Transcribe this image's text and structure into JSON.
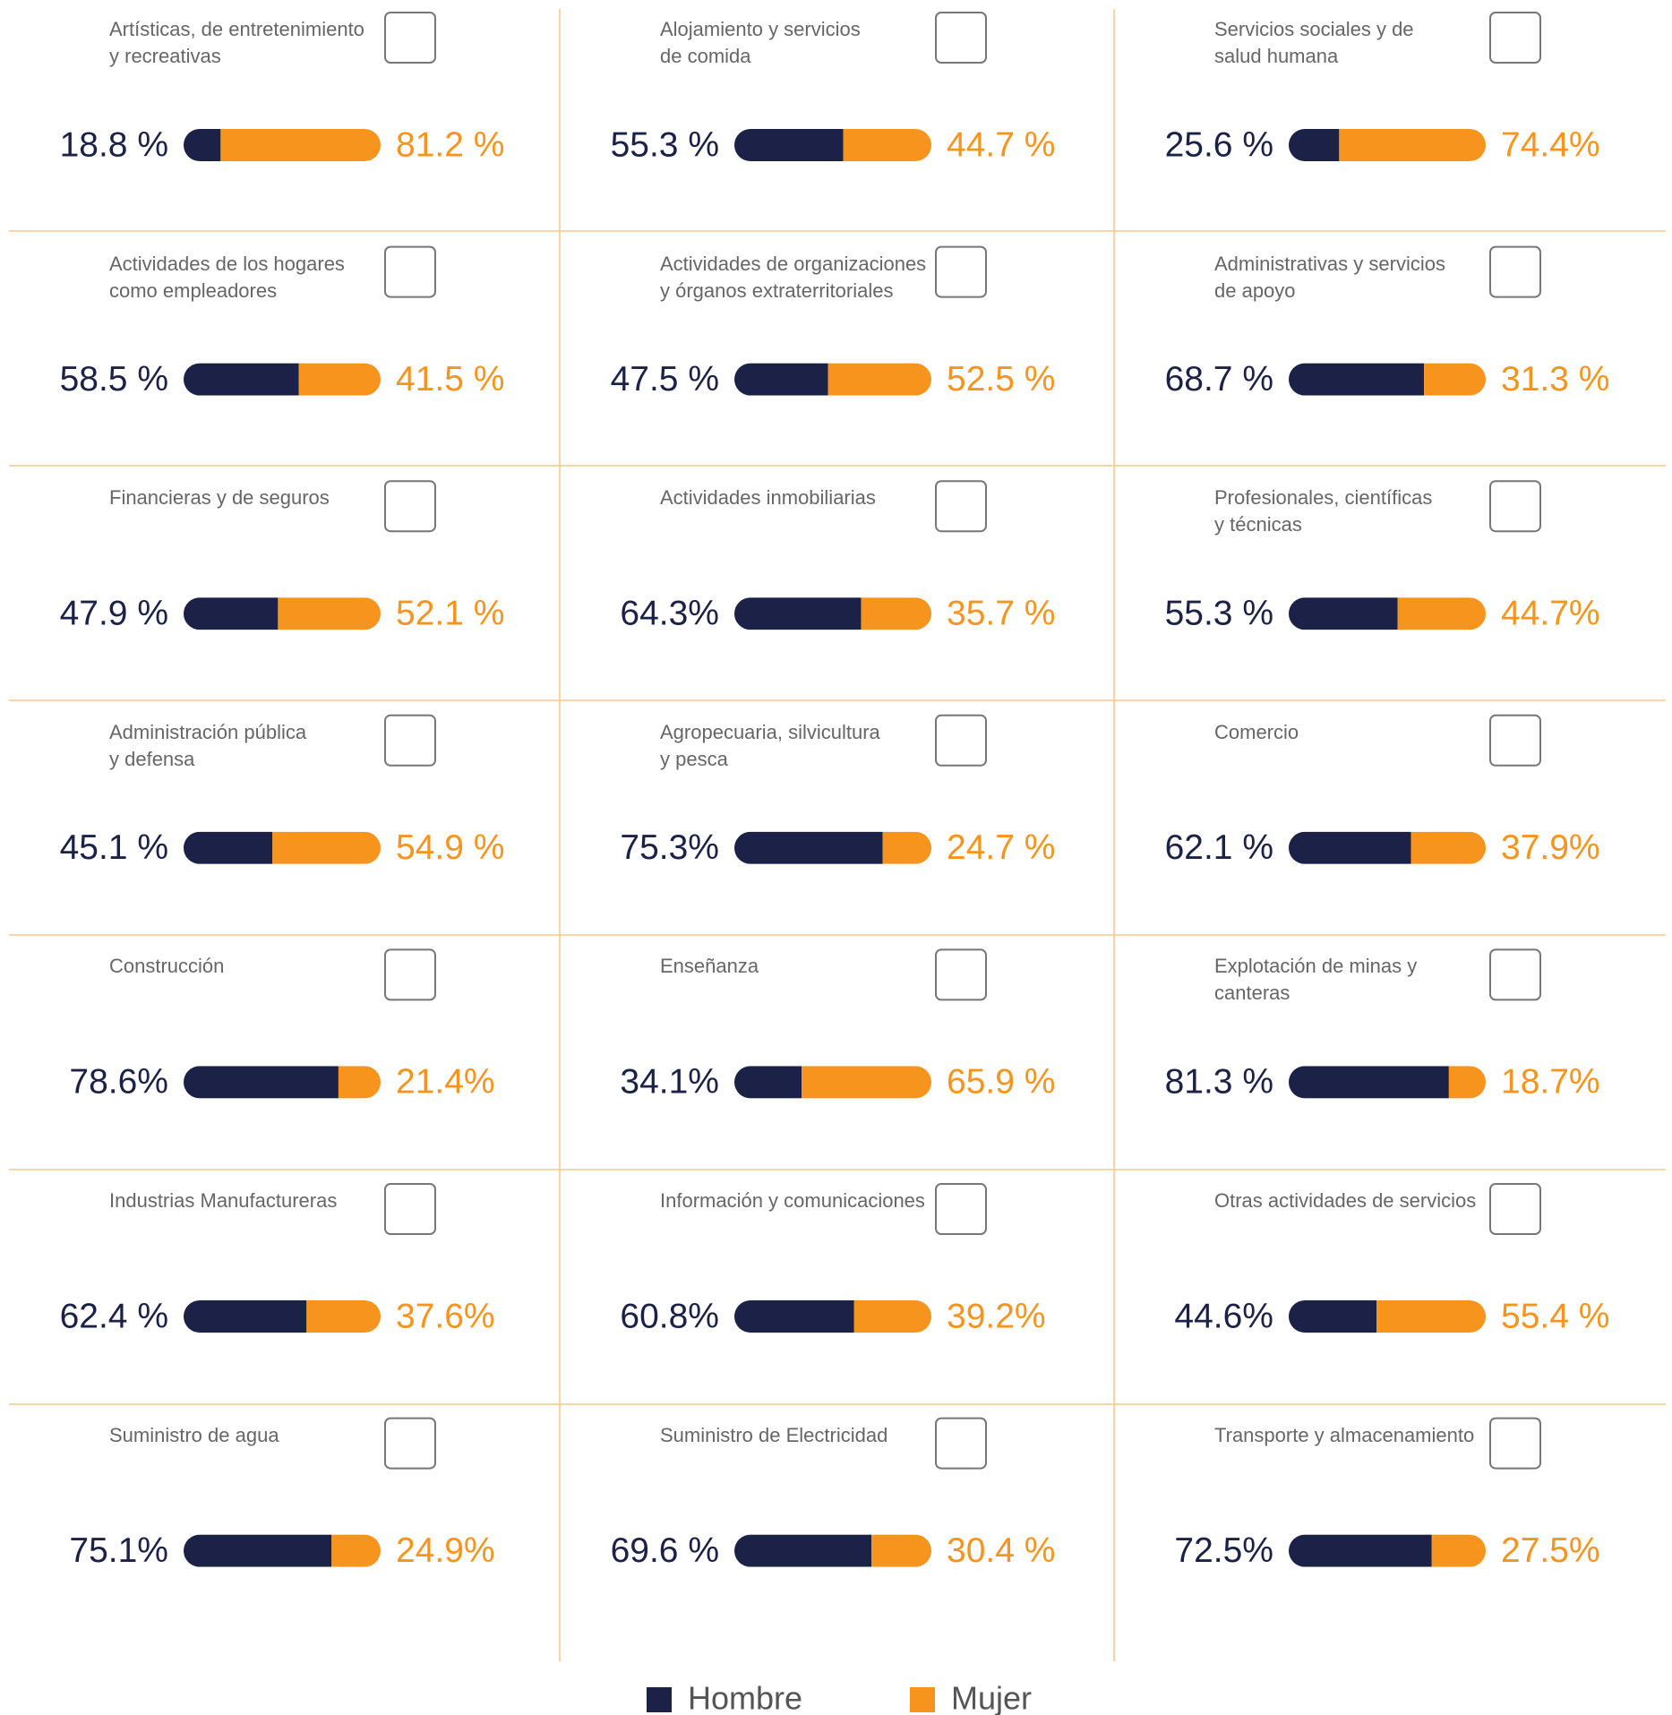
{
  "chart_data": {
    "type": "stacked-bar-grid",
    "xlim": [
      0,
      100
    ],
    "categories": [
      "Artísticas, de entretenimiento\ny recreativas",
      "Alojamiento y servicios\nde comida",
      "Servicios sociales y de\nsalud humana",
      "Actividades de los hogares\ncomo empleadores",
      "Actividades de organizaciones\ny órganos extraterritoriales",
      "Administrativas y servicios\nde apoyo",
      "Financieras y de seguros",
      "Actividades inmobiliarias",
      "Profesionales, científicas\ny técnicas",
      "Administración pública\ny defensa",
      "Agropecuaria, silvicultura\ny pesca",
      "Comercio",
      "Construcción",
      "Enseñanza",
      "Explotación de minas y\ncanteras",
      "Industrias Manufactureras",
      "Información y comunicaciones",
      "Otras actividades de servicios",
      "Suministro de agua",
      "Suministro de Electricidad",
      "Transporte y almacenamiento"
    ],
    "series": [
      {
        "name": "Hombre",
        "color": "#1b2147",
        "values": [
          18.8,
          55.3,
          25.6,
          58.5,
          47.5,
          68.7,
          47.9,
          64.3,
          55.3,
          45.1,
          75.3,
          62.1,
          78.6,
          34.1,
          81.3,
          62.4,
          60.8,
          44.6,
          75.1,
          69.6,
          72.5
        ],
        "value_labels": [
          "18.8 %",
          "55.3 %",
          "25.6 %",
          "58.5 %",
          "47.5 %",
          "68.7 %",
          "47.9 %",
          "64.3%",
          "55.3 %",
          "45.1 %",
          "75.3%",
          "62.1 %",
          "78.6%",
          "34.1%",
          "81.3 %",
          "62.4 %",
          "60.8%",
          "44.6%",
          "75.1%",
          "69.6 %",
          "72.5%"
        ]
      },
      {
        "name": "Mujer",
        "color": "#f7941d",
        "values": [
          81.2,
          44.7,
          74.4,
          41.5,
          52.5,
          31.3,
          52.1,
          35.7,
          44.7,
          54.9,
          24.7,
          37.9,
          21.4,
          65.9,
          18.7,
          37.6,
          39.2,
          55.4,
          24.9,
          30.4,
          27.5
        ],
        "value_labels": [
          "81.2 %",
          "44.7 %",
          "74.4%",
          "41.5 %",
          "52.5 %",
          "31.3 %",
          "52.1 %",
          "35.7 %",
          "44.7%",
          "54.9 %",
          "24.7 %",
          "37.9%",
          "21.4%",
          "65.9 %",
          "18.7%",
          "37.6%",
          "39.2%",
          "55.4 %",
          "24.9%",
          "30.4 %",
          "27.5%"
        ]
      }
    ]
  }
}
